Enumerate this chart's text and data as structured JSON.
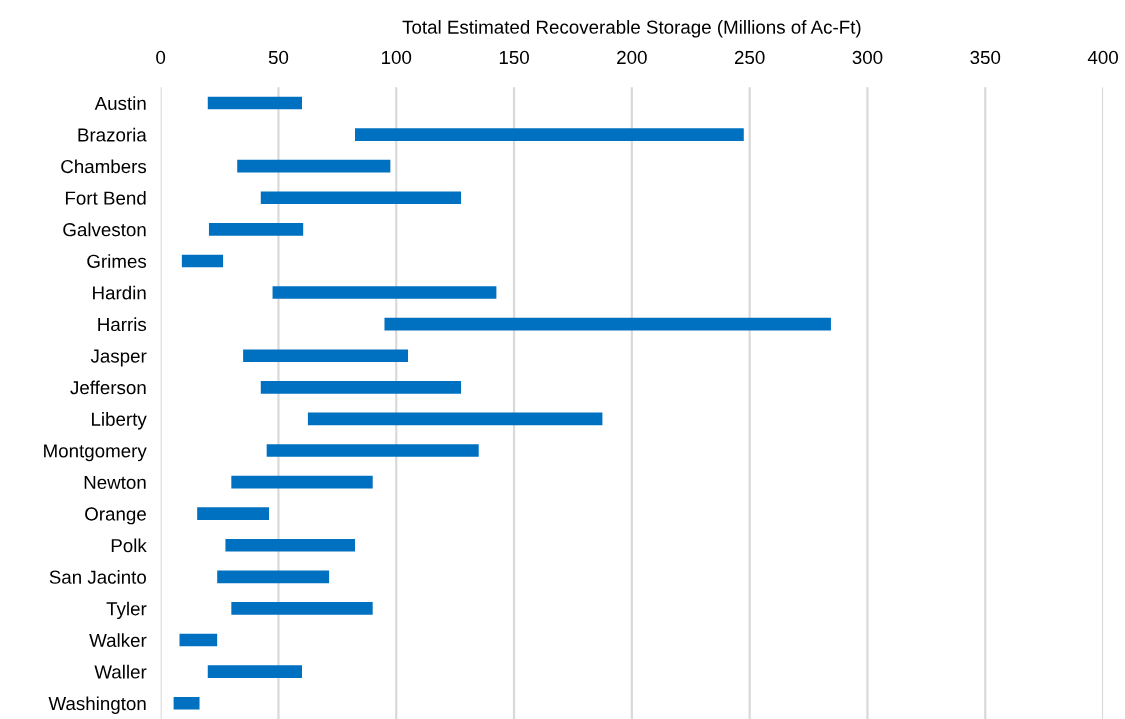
{
  "chart_data": {
    "type": "bar",
    "orientation": "horizontal",
    "xlabel": "Total Estimated Recoverable Storage (Millions of Ac-Ft)",
    "categories": [
      "Austin",
      "Brazoria",
      "Chambers",
      "Fort Bend",
      "Galveston",
      "Grimes",
      "Hardin",
      "Harris",
      "Jasper",
      "Jefferson",
      "Liberty",
      "Montgomery",
      "Newton",
      "Orange",
      "Polk",
      "San Jacinto",
      "Tyler",
      "Walker",
      "Waller",
      "Washington"
    ],
    "base": [
      20,
      82.5,
      32.5,
      42.5,
      20.5,
      9,
      47.5,
      95,
      35,
      42.5,
      62.5,
      45,
      30,
      15.5,
      27.5,
      24,
      30,
      8,
      20,
      5.5
    ],
    "values": [
      40,
      165,
      65,
      85,
      40,
      17.5,
      95,
      189.5,
      70,
      85,
      125,
      90,
      60,
      30.5,
      55,
      47.5,
      60,
      16,
      40,
      11
    ],
    "color": "#0070c0",
    "xlim": [
      0,
      400
    ],
    "xticks": [
      0,
      50,
      100,
      150,
      200,
      250,
      300,
      350,
      400
    ],
    "grid": "x"
  }
}
